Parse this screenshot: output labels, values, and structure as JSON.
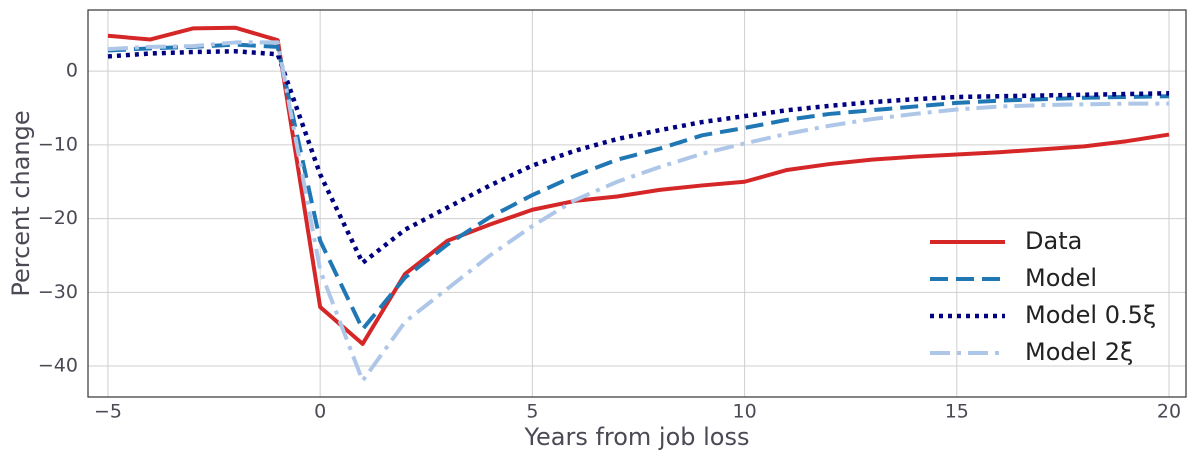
{
  "chart_data": {
    "type": "line",
    "xlabel": "Years from job loss",
    "ylabel": "Percent change",
    "x": [
      -5,
      -4,
      -3,
      -2,
      -1,
      0,
      1,
      2,
      3,
      4,
      5,
      6,
      7,
      8,
      9,
      10,
      11,
      12,
      13,
      14,
      15,
      16,
      17,
      18,
      19,
      20
    ],
    "series": [
      {
        "name": "Data",
        "color": "#d62728",
        "dash": "solid",
        "values": [
          4.8,
          4.3,
          5.8,
          5.9,
          4.2,
          -32,
          -37,
          -27.5,
          -23,
          -20.8,
          -18.8,
          -17.6,
          -17,
          -16.1,
          -15.5,
          -15,
          -13.4,
          -12.6,
          -12,
          -11.6,
          -11.3,
          -11,
          -10.6,
          -10.2,
          -9.5,
          -8.6
        ]
      },
      {
        "name": "Model",
        "color": "#1f77b4",
        "dash": "dashed",
        "values": [
          2.8,
          3.1,
          3.3,
          3.6,
          3.3,
          -23,
          -35,
          -28,
          -23.5,
          -19.8,
          -16.8,
          -14.2,
          -12,
          -10.5,
          -8.7,
          -7.7,
          -6.6,
          -5.8,
          -5.3,
          -4.8,
          -4.3,
          -4,
          -3.8,
          -3.6,
          -3.5,
          -3.4
        ]
      },
      {
        "name": "Model 0.5ξ",
        "color": "#000080",
        "dash": "dotted",
        "values": [
          2,
          2.4,
          2.6,
          2.7,
          2.3,
          -14,
          -26,
          -21.5,
          -18.5,
          -15.5,
          -12.8,
          -10.8,
          -9.2,
          -8,
          -6.9,
          -6.1,
          -5.3,
          -4.7,
          -4.2,
          -3.8,
          -3.5,
          -3.4,
          -3.3,
          -3.2,
          -3.1,
          -3
        ]
      },
      {
        "name": "Model 2ξ",
        "color": "#aec7e8",
        "dash": "dashdot",
        "values": [
          3,
          3.3,
          3.4,
          3.9,
          3.9,
          -27,
          -42,
          -34,
          -29.5,
          -25,
          -21,
          -17.5,
          -15,
          -13,
          -11.2,
          -9.8,
          -8.5,
          -7.4,
          -6.5,
          -5.8,
          -5.2,
          -4.8,
          -4.6,
          -4.5,
          -4.4,
          -4.4
        ]
      }
    ],
    "xlim": [
      -5.47,
      20.4
    ],
    "ylim": [
      -44.2,
      8.3
    ],
    "xticks": [
      {
        "value": -5,
        "label": "−5"
      },
      0,
      5,
      10,
      15,
      20
    ],
    "yticks": [
      {
        "value": -40,
        "label": "−40"
      },
      {
        "value": -30,
        "label": "−30"
      },
      {
        "value": -20,
        "label": "−20"
      },
      {
        "value": -10,
        "label": "−10"
      },
      0
    ],
    "grid": true,
    "legend": "lower right"
  }
}
